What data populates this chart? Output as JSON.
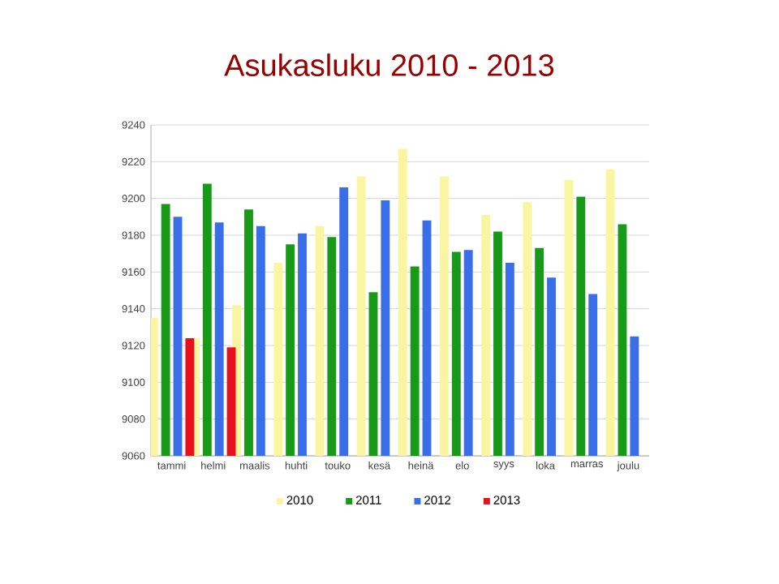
{
  "chart_data": {
    "type": "bar",
    "title": "Asukasluku 2010 - 2013",
    "categories": [
      "tammi",
      "helmi",
      "maalis",
      "huhti",
      "touko",
      "kesä",
      "heinä",
      "elo",
      "syys",
      "loka",
      "marras",
      "joulu"
    ],
    "series": [
      {
        "name": "2010",
        "color": "#faf5a0",
        "values": [
          9135,
          9124,
          9142,
          9165,
          9185,
          9212,
          9227,
          9212,
          9191,
          9198,
          9210,
          9216
        ]
      },
      {
        "name": "2011",
        "color": "#189a18",
        "values": [
          9197,
          9208,
          9194,
          9175,
          9179,
          9149,
          9163,
          9171,
          9182,
          9173,
          9201,
          9186
        ]
      },
      {
        "name": "2012",
        "color": "#3a6ee8",
        "values": [
          9190,
          9187,
          9185,
          9181,
          9206,
          9199,
          9188,
          9172,
          9165,
          9157,
          9148,
          9125
        ]
      },
      {
        "name": "2013",
        "color": "#e8101c",
        "values": [
          9124,
          9119,
          null,
          null,
          null,
          null,
          null,
          null,
          null,
          null,
          null,
          null
        ]
      }
    ],
    "ylim": [
      9060,
      9240
    ],
    "yticks": [
      9060,
      9080,
      9100,
      9120,
      9140,
      9160,
      9180,
      9200,
      9220,
      9240
    ],
    "grid": "y",
    "legend": "bottom"
  }
}
